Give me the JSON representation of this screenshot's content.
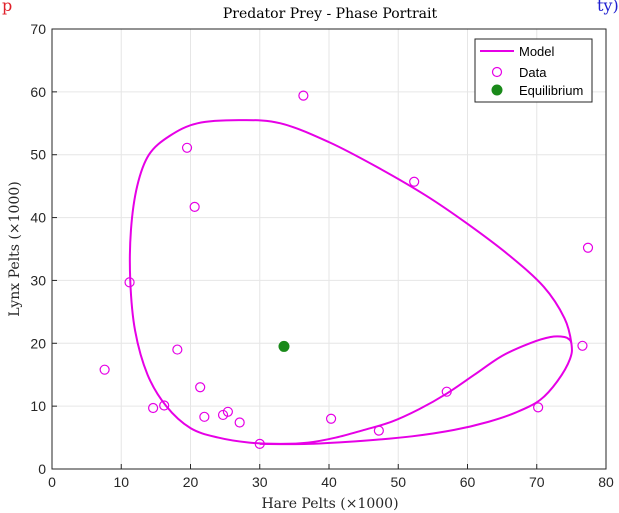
{
  "header": {
    "left_fragment": "p",
    "right_fragment": "ty)",
    "left_color": "#e0202a",
    "right_color": "#2020d0"
  },
  "chart_data": {
    "type": "line",
    "title": "Predator Prey - Phase Portrait",
    "xlabel": "Hare Pelts (×1000)",
    "ylabel": "Lynx Pelts (×1000)",
    "xlim": [
      0,
      80
    ],
    "ylim": [
      0,
      70
    ],
    "xticks": [
      0,
      10,
      20,
      30,
      40,
      50,
      60,
      70,
      80
    ],
    "yticks": [
      0,
      10,
      20,
      30,
      40,
      50,
      60,
      70
    ],
    "grid": true,
    "legend_position": "top-right",
    "series": [
      {
        "name": "Model",
        "kind": "line",
        "color": "#e600e6",
        "x": [
          30.0,
          37.0,
          45.0,
          52.0,
          58.0,
          63.0,
          67.0,
          70.5,
          73.0,
          74.8,
          75.0,
          74.0,
          71.0,
          66.0,
          60.0,
          54.0,
          47.0,
          40.0,
          33.0,
          27.0,
          21.0,
          17.0,
          14.0,
          12.3,
          11.4,
          11.3,
          12.0,
          13.8,
          16.5,
          20.0,
          24.0,
          28.5,
          33.0,
          37.0,
          41.0,
          45.0,
          49.0,
          53.0,
          57.0,
          61.0,
          65.0,
          69.0,
          72.0,
          74.0,
          74.8,
          75.0
        ],
        "y": [
          4.0,
          4.0,
          4.5,
          5.2,
          6.2,
          7.5,
          9.0,
          11.0,
          14.0,
          17.5,
          20.0,
          24.0,
          29.0,
          34.0,
          39.0,
          43.5,
          48.0,
          52.0,
          55.0,
          55.5,
          55.0,
          53.0,
          50.0,
          45.0,
          38.0,
          30.0,
          22.0,
          15.0,
          10.0,
          6.5,
          5.0,
          4.2,
          4.0,
          4.2,
          5.0,
          6.2,
          7.5,
          9.5,
          12.0,
          15.0,
          18.0,
          20.0,
          21.0,
          21.0,
          20.5,
          20.0
        ]
      },
      {
        "name": "Data",
        "kind": "scatter",
        "marker": "open-circle",
        "color": "#e600e6",
        "x": [
          30.0,
          47.2,
          70.2,
          77.4,
          36.3,
          20.6,
          18.1,
          21.4,
          22.0,
          25.4,
          27.1,
          40.3,
          57.0,
          76.6,
          52.3,
          19.5,
          11.2,
          7.6,
          14.6,
          16.2,
          24.7
        ],
        "y": [
          4.0,
          6.1,
          9.8,
          35.2,
          59.4,
          41.7,
          19.0,
          13.0,
          8.3,
          9.1,
          7.4,
          8.0,
          12.3,
          19.6,
          45.7,
          51.1,
          29.7,
          15.8,
          9.7,
          10.1,
          8.6
        ]
      },
      {
        "name": "Equilibrium",
        "kind": "scatter",
        "marker": "filled-circle",
        "color": "#1a8a1a",
        "x": [
          33.5
        ],
        "y": [
          19.5
        ]
      }
    ]
  }
}
